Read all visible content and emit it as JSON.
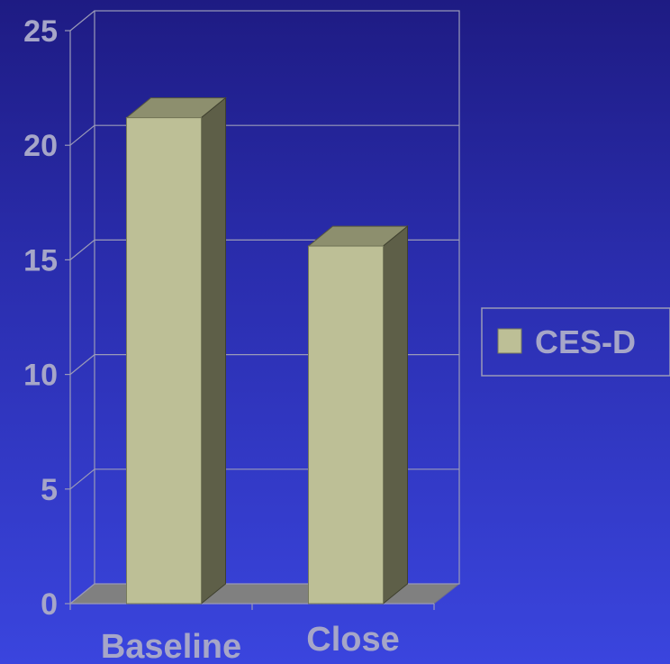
{
  "chart_data": {
    "type": "bar",
    "categories": [
      "Baseline",
      "Close"
    ],
    "series": [
      {
        "name": "CES-D",
        "values": [
          21.2,
          15.6
        ]
      }
    ],
    "ylim": [
      0,
      25
    ],
    "yticks": [
      "0",
      "5",
      "10",
      "15",
      "20",
      "25"
    ],
    "grid": true,
    "legend_position": "right",
    "colors": {
      "bar_front": "#bdbf96",
      "bar_side": "#5e5f48",
      "bar_top": "#8d8f6e",
      "axis": "#9a9ab8",
      "floor": "#808080",
      "text": "#a6a6c8"
    }
  }
}
